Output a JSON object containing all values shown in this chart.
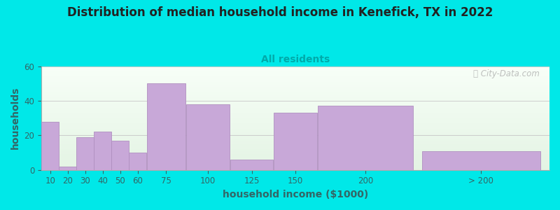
{
  "title": "Distribution of median household income in Kenefick, TX in 2022",
  "subtitle": "All residents",
  "xlabel": "household income ($1000)",
  "ylabel": "households",
  "background_color": "#00e8e8",
  "bar_color": "#c8a8d8",
  "bar_edge_color": "#b090c0",
  "bar_categories": [
    "10",
    "20",
    "30",
    "40",
    "50",
    "60",
    "75",
    "100",
    "125",
    "150",
    "200",
    "> 200"
  ],
  "bar_values": [
    28,
    2,
    19,
    22,
    17,
    10,
    50,
    38,
    6,
    33,
    37,
    11
  ],
  "bar_lefts": [
    5,
    15,
    25,
    35,
    45,
    55,
    65,
    87.5,
    112.5,
    137.5,
    162.5,
    222
  ],
  "bar_widths": [
    10,
    10,
    10,
    10,
    10,
    10,
    22.5,
    25,
    25,
    25,
    55,
    68
  ],
  "xlim": [
    5,
    295
  ],
  "ylim": [
    0,
    60
  ],
  "yticks": [
    0,
    20,
    40,
    60
  ],
  "title_fontsize": 12,
  "subtitle_fontsize": 10,
  "axis_label_fontsize": 10,
  "tick_fontsize": 8.5,
  "watermark": "ⓘ City-Data.com"
}
